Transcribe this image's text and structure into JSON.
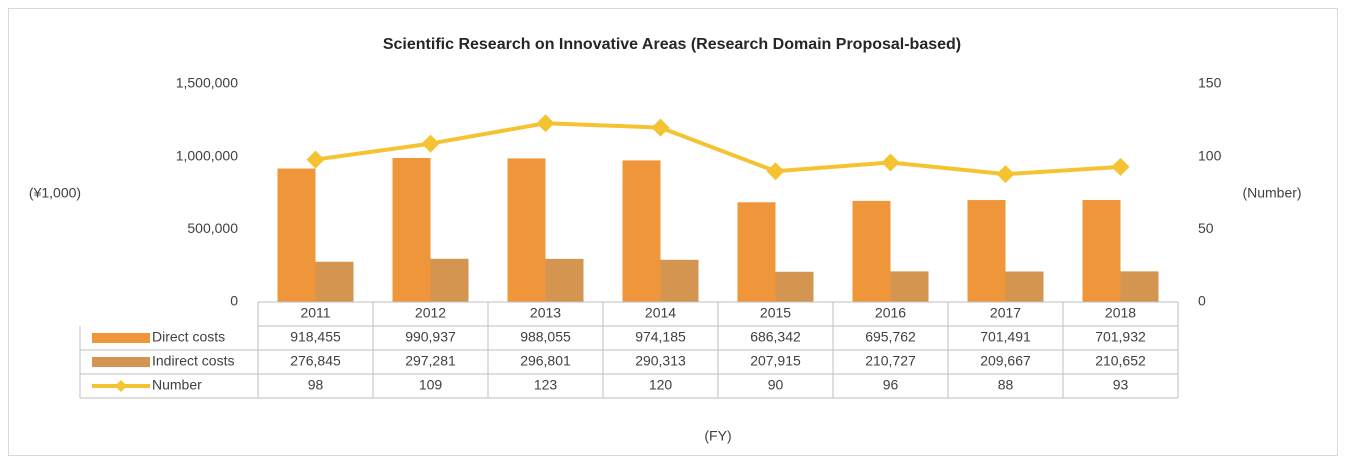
{
  "chart_data": {
    "type": "bar",
    "title": "Scientific Research on Innovative Areas (Research Domain Proposal-based)",
    "categories": [
      "2011",
      "2012",
      "2013",
      "2014",
      "2015",
      "2016",
      "2017",
      "2018"
    ],
    "x_label": "(FY)",
    "y_label": "(¥1,000)",
    "y2_label": "(Number)",
    "series": [
      {
        "name": "Direct costs",
        "color": "#f0963a",
        "type": "bar",
        "values": [
          918455,
          990937,
          988055,
          974185,
          686342,
          695762,
          701491,
          701932
        ],
        "value_labels": [
          "918,455",
          "990,937",
          "988,055",
          "974,185",
          "686,342",
          "695,762",
          "701,491",
          "701,932"
        ]
      },
      {
        "name": "Indirect costs",
        "color": "#d39550",
        "type": "bar",
        "values": [
          276845,
          297281,
          296801,
          290313,
          207915,
          210727,
          209667,
          210652
        ],
        "value_labels": [
          "276,845",
          "297,281",
          "296,801",
          "290,313",
          "207,915",
          "210,727",
          "209,667",
          "210,652"
        ]
      },
      {
        "name": "Number",
        "color": "#f5c332",
        "type": "line",
        "axis": "y2",
        "values": [
          98,
          109,
          123,
          120,
          90,
          96,
          88,
          93
        ]
      }
    ],
    "ylim": [
      0,
      1500000
    ],
    "yticks": [
      0,
      {
        "value": 500000,
        "label": "500,000"
      },
      {
        "value": 1000000,
        "label": "1,000,000"
      },
      {
        "value": 1500000,
        "label": "1,500,000"
      }
    ],
    "y2lim": [
      0,
      150
    ],
    "y2ticks": [
      0,
      50,
      100,
      150
    ],
    "grid": false
  }
}
